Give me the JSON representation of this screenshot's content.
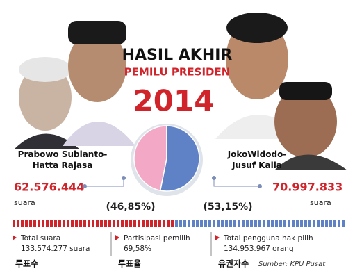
{
  "chart_data": {
    "type": "pie",
    "title": "HASIL AKHIR",
    "subtitle": "PEMILU PRESIDEN",
    "year": "2014",
    "categories": [
      "Prabowo Subianto-\nHatta Rajasa",
      "JokoWidodo-\nJusuf Kalla"
    ],
    "values": [
      46.85,
      53.15
    ],
    "value_labels": [
      "(46,85%)",
      "(53,15%)"
    ],
    "colors": [
      "#f3a9c6",
      "#5f82c6"
    ],
    "votes": [
      "62.576.444",
      "70.997.833"
    ],
    "vote_units": [
      "suara",
      "suara"
    ]
  },
  "stats": [
    {
      "label": "Total suara",
      "value": "133.574.277 suara",
      "korean": "투표수"
    },
    {
      "label": "Partisipasi pemilih",
      "value": "69,58%",
      "korean": "투표율"
    },
    {
      "label": "Total pengguna hak pilih",
      "value": "134.953.967 orang",
      "korean": "유권자수"
    }
  ],
  "source": "Sumber: KPU Pusat"
}
